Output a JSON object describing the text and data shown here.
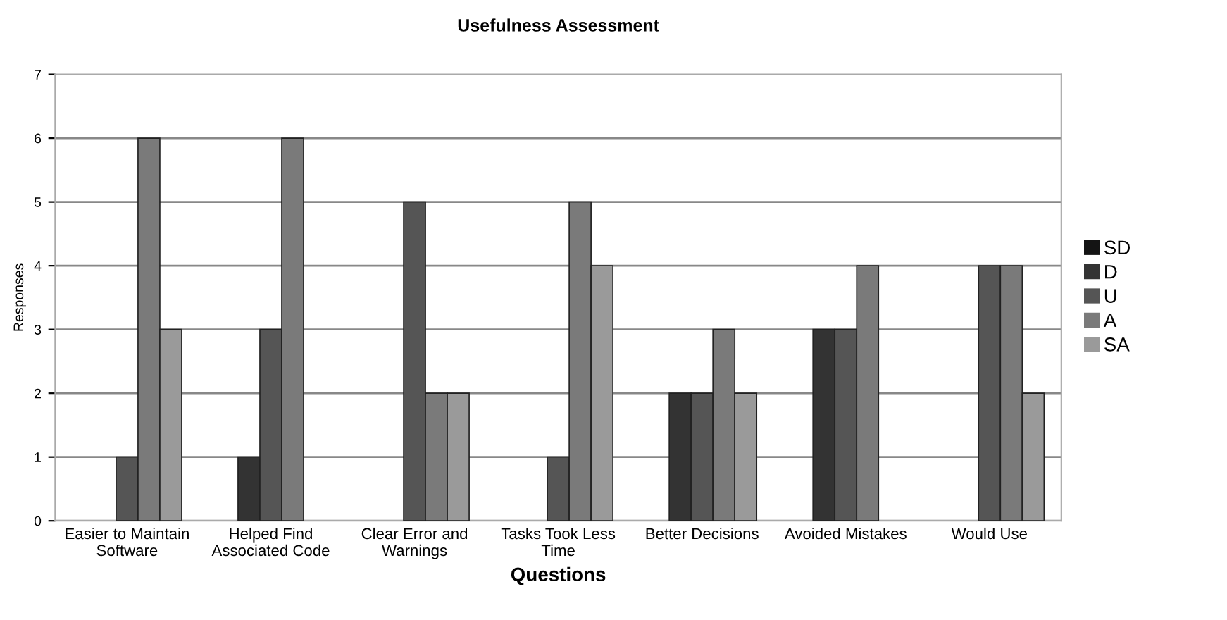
{
  "chart_data": {
    "type": "bar",
    "title": "Usefulness Assessment",
    "xlabel": "Questions",
    "ylabel": "Responses",
    "categories": [
      "Easier to Maintain\nSoftware",
      "Helped Find\nAssociated Code",
      "Clear Error and\nWarnings",
      "Tasks Took Less\nTime",
      "Better Decisions",
      "Avoided Mistakes",
      "Would Use"
    ],
    "series": [
      {
        "name": "SD",
        "color": "#141414",
        "values": [
          0,
          0,
          0,
          0,
          0,
          0,
          0
        ]
      },
      {
        "name": "D",
        "color": "#333333",
        "values": [
          0,
          1,
          0,
          0,
          2,
          3,
          0
        ]
      },
      {
        "name": "U",
        "color": "#555555",
        "values": [
          1,
          3,
          5,
          1,
          2,
          3,
          4
        ]
      },
      {
        "name": "A",
        "color": "#7a7a7a",
        "values": [
          6,
          6,
          2,
          5,
          3,
          4,
          4
        ]
      },
      {
        "name": "SA",
        "color": "#9a9a9a",
        "values": [
          3,
          0,
          2,
          4,
          2,
          0,
          2
        ]
      }
    ],
    "ylim": [
      0,
      7
    ],
    "yticks": [
      0,
      1,
      2,
      3,
      4,
      5,
      6,
      7
    ],
    "grid": "y",
    "legend": "right"
  }
}
